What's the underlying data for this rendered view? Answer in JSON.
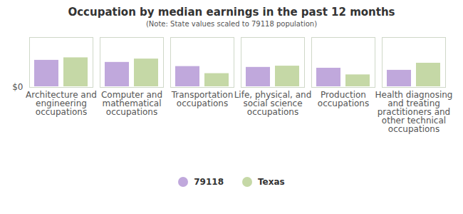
{
  "chart_data": {
    "type": "bar",
    "title": "Occupation by median earnings in the past 12 months",
    "subtitle": "(Note: State values scaled to 79118 population)",
    "categories": [
      "Architecture and engineering occupations",
      "Computer and mathematical occupations",
      "Transportation occupations",
      "Life, physical, and social science occupations",
      "Production occupations",
      "Health diagnosing and treating practitioners and other technical occupations"
    ],
    "series": [
      {
        "name": "79118",
        "color": "#c0a8dc",
        "values": [
          67000,
          62000,
          52000,
          50000,
          48000,
          43000
        ]
      },
      {
        "name": "Texas",
        "color": "#c5d8a6",
        "values": [
          73000,
          70000,
          35000,
          53000,
          32000,
          60000
        ]
      }
    ],
    "ylim": [
      0,
      120000
    ],
    "yticks": [
      {
        "value": 0,
        "label": "$0"
      }
    ],
    "legend": "bottom"
  }
}
